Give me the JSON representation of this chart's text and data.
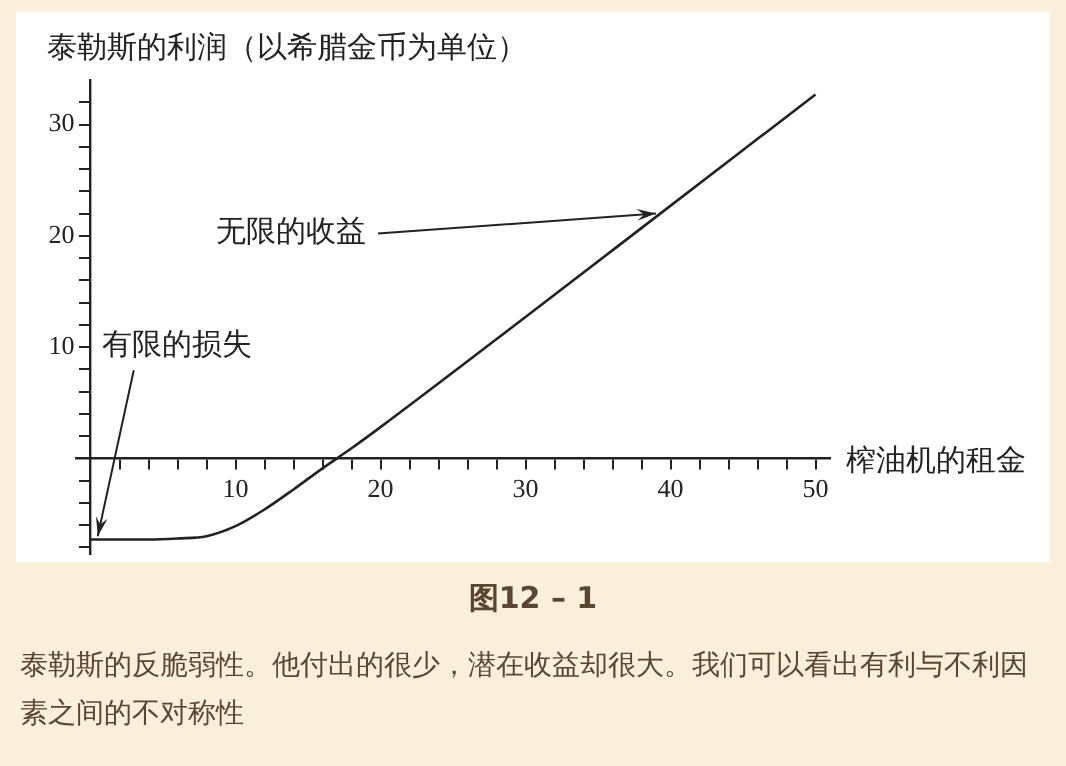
{
  "chart_data": {
    "type": "line",
    "ylabel": "泰勒斯的利润（以希腊金币为单位）",
    "xlabel": "榨油机的租金",
    "series": [
      {
        "color": "#222222",
        "x": [
          0,
          2,
          4,
          6,
          8,
          10,
          12,
          14,
          16,
          18,
          20,
          30,
          39,
          50
        ],
        "values": [
          -7.3,
          -7.3,
          -7.3,
          -7.2,
          -7.0,
          -6.1,
          -4.6,
          -2.8,
          -0.9,
          0.9,
          2.8,
          12.7,
          21.7,
          32.7
        ]
      }
    ],
    "xlim": [
      -1,
      51
    ],
    "ylim": [
      -8.6,
      34
    ],
    "xticks": [
      {
        "value": 2,
        "label": null
      },
      {
        "value": 4,
        "label": null
      },
      {
        "value": 6,
        "label": null
      },
      {
        "value": 8,
        "label": null
      },
      10,
      {
        "value": 12,
        "label": null
      },
      {
        "value": 14,
        "label": null
      },
      {
        "value": 16,
        "label": null
      },
      {
        "value": 18,
        "label": null
      },
      20,
      {
        "value": 22,
        "label": null
      },
      {
        "value": 24,
        "label": null
      },
      {
        "value": 26,
        "label": null
      },
      {
        "value": 28,
        "label": null
      },
      30,
      {
        "value": 32,
        "label": null
      },
      {
        "value": 34,
        "label": null
      },
      {
        "value": 36,
        "label": null
      },
      {
        "value": 38,
        "label": null
      },
      40,
      {
        "value": 42,
        "label": null
      },
      {
        "value": 44,
        "label": null
      },
      {
        "value": 46,
        "label": null
      },
      {
        "value": 48,
        "label": null
      },
      50
    ],
    "yticks": [
      {
        "value": -8,
        "label": null
      },
      {
        "value": -6,
        "label": null
      },
      {
        "value": -4,
        "label": null
      },
      {
        "value": -2,
        "label": null
      },
      {
        "value": 2,
        "label": null
      },
      {
        "value": 4,
        "label": null
      },
      {
        "value": 6,
        "label": null
      },
      {
        "value": 8,
        "label": null
      },
      10,
      {
        "value": 12,
        "label": null
      },
      {
        "value": 14,
        "label": null
      },
      {
        "value": 16,
        "label": null
      },
      {
        "value": 18,
        "label": null
      },
      20,
      {
        "value": 22,
        "label": null
      },
      {
        "value": 24,
        "label": null
      },
      {
        "value": 26,
        "label": null
      },
      {
        "value": 28,
        "label": null
      },
      30,
      {
        "value": 32,
        "label": null
      }
    ],
    "grid": false,
    "legend": false,
    "marker": "none",
    "line_style": "solid",
    "annotations": [
      {
        "text": "无限的收益",
        "x": 39,
        "y": 22
      },
      {
        "text": "有限的损失",
        "x": 0.5,
        "y": -7
      },
      "图12 – 1",
      "泰勒斯的反脆弱性。他付出的很少，潜在收益却很大。我们可以看出有利与不利因素之间的不对称性"
    ]
  }
}
